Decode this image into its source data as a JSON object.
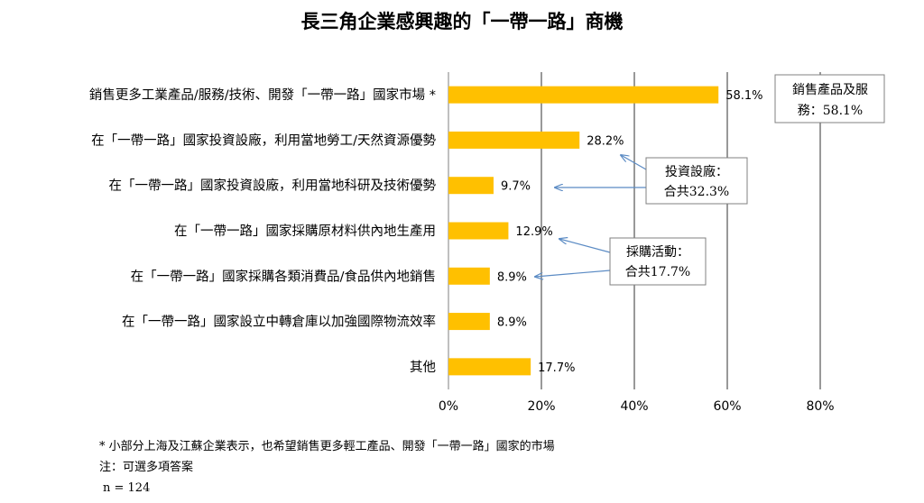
{
  "chart_data": {
    "type": "bar",
    "orientation": "horizontal",
    "title": "長三角企業感興趣的「一帶一路」商機",
    "categories": [
      "銷售更多工業產品/服務/技術、開發「一帶一路」國家市場 *",
      "在「一帶一路」國家投資設廠，利用當地勞工/天然資源優勢",
      "在「一帶一路」國家投資設廠，利用當地科研及技術優勢",
      "在「一帶一路」國家採購原材料供內地生產用",
      "在「一帶一路」國家採購各類消費品/食品供內地銷售",
      "在「一帶一路」國家設立中轉倉庫以加強國際物流效率",
      "其他"
    ],
    "values": [
      58.1,
      28.2,
      9.7,
      12.9,
      8.9,
      8.9,
      17.7
    ],
    "value_labels": [
      "58.1%",
      "28.2%",
      "9.7%",
      "12.9%",
      "8.9%",
      "8.9%",
      "17.7%"
    ],
    "xlim": [
      0,
      80
    ],
    "x_ticks": [
      "0%",
      "20%",
      "40%",
      "60%",
      "80%"
    ],
    "grid": "vertical",
    "bar_color": "#FFC000",
    "annotations": [
      {
        "lines": [
          "銷售產品及服",
          "務：58.1%"
        ],
        "target": 0
      },
      {
        "lines": [
          "投資設廠：",
          "合共32.3%"
        ],
        "targets": [
          1,
          2
        ]
      },
      {
        "lines": [
          "採購活動：",
          "合共17.7%"
        ],
        "targets": [
          3,
          4
        ]
      }
    ],
    "arrow_color": "#5B8BC4"
  },
  "footnotes": [
    "* 小部分上海及江蘇企業表示，也希望銷售更多輕工產品、開發「一帶一路」國家的市場",
    "注：可選多項答案",
    "n = 124"
  ]
}
